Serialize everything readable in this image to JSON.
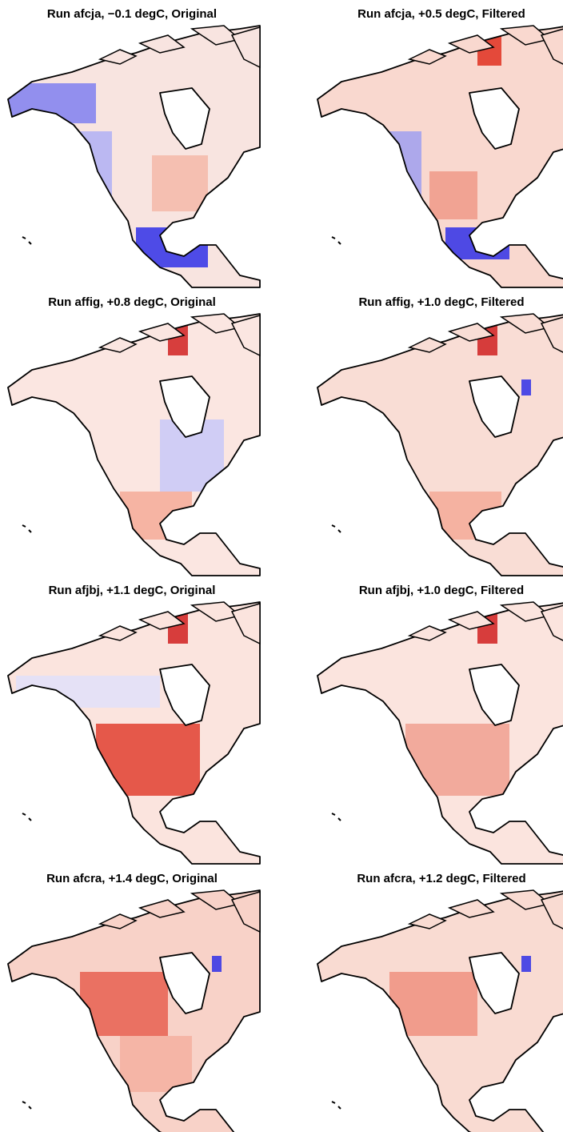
{
  "panels": [
    {
      "title": "Run afcja, −0.1 degC, Original"
    },
    {
      "title": "Run afcja, +0.5 degC, Filtered"
    },
    {
      "title": "Run affig, +0.8 degC, Original"
    },
    {
      "title": "Run affig, +1.0 degC, Filtered"
    },
    {
      "title": "Run afjbj, +1.1 degC, Original"
    },
    {
      "title": "Run afjbj, +1.0 degC, Filtered"
    },
    {
      "title": "Run afcra, +1.4 degC, Original"
    },
    {
      "title": "Run afcra, +1.2 degC, Filtered"
    }
  ]
}
